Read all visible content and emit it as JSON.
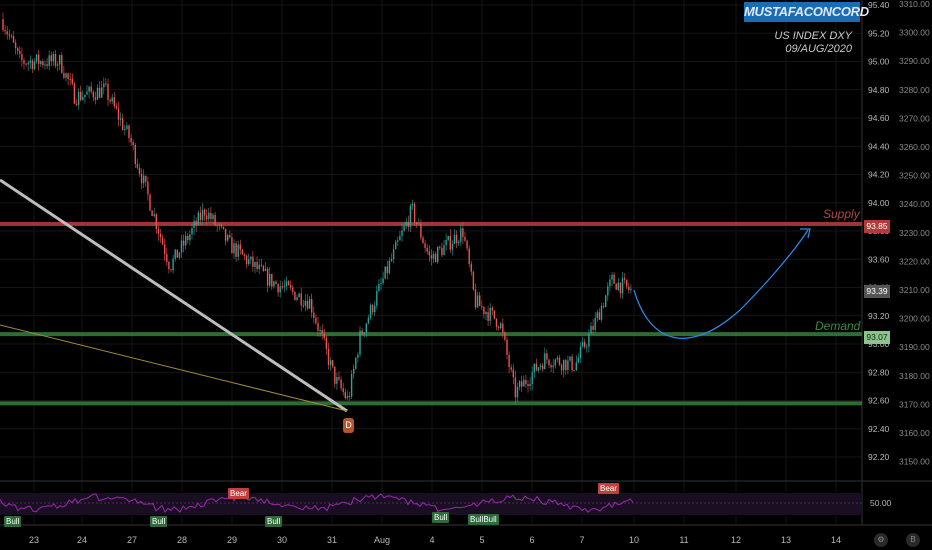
{
  "branding": {
    "watermark": "MUSTAFACONCORD"
  },
  "annotation": {
    "line1": "US INDEX DXY",
    "line2": "09/AUG/2020"
  },
  "zones": {
    "supply_label": "Supply",
    "demand_label": "Demand",
    "d_marker": "D"
  },
  "price_tags": {
    "supply": "93.85",
    "last": "93.39",
    "demand": "93.07"
  },
  "left_axis_labels": [
    "95.40",
    "95.20",
    "95.00",
    "94.80",
    "94.60",
    "94.40",
    "94.20",
    "94.00",
    "93.80",
    "93.60",
    "93.40",
    "93.20",
    "93.00",
    "92.80",
    "92.60",
    "92.40",
    "92.20"
  ],
  "right_axis_labels": [
    "3310.00",
    "3300.00",
    "3290.00",
    "3280.00",
    "3270.00",
    "3260.00",
    "3250.00",
    "3240.00",
    "3230.00",
    "3220.00",
    "3210.00",
    "3200.00",
    "3190.00",
    "3180.00",
    "3170.00",
    "3160.00",
    "3150.00"
  ],
  "osc_axis_label": "50.00",
  "time_labels": [
    "23",
    "24",
    "27",
    "28",
    "29",
    "30",
    "31",
    "Aug",
    "4",
    "5",
    "6",
    "7",
    "10",
    "11",
    "12",
    "13",
    "14"
  ],
  "signals": [
    {
      "text": "Bull",
      "kind": "bull"
    },
    {
      "text": "Bull",
      "kind": "bull"
    },
    {
      "text": "Bear",
      "kind": "bear"
    },
    {
      "text": "Bull",
      "kind": "bull"
    },
    {
      "text": "Bull",
      "kind": "bull"
    },
    {
      "text": "BullBull",
      "kind": "bull"
    },
    {
      "text": "Bear",
      "kind": "bear"
    }
  ],
  "colors": {
    "supply": "#b23a3a",
    "demand": "#2f7a3a",
    "up": "#26a69a",
    "down": "#ef5350",
    "projection": "#2a8cf0",
    "oscillator": "#9c27b0"
  },
  "bottom_icons": {
    "left": "gear-icon",
    "right": "b-icon"
  },
  "bottom_icon_text": {
    "left": "⚙",
    "right": "B"
  }
}
